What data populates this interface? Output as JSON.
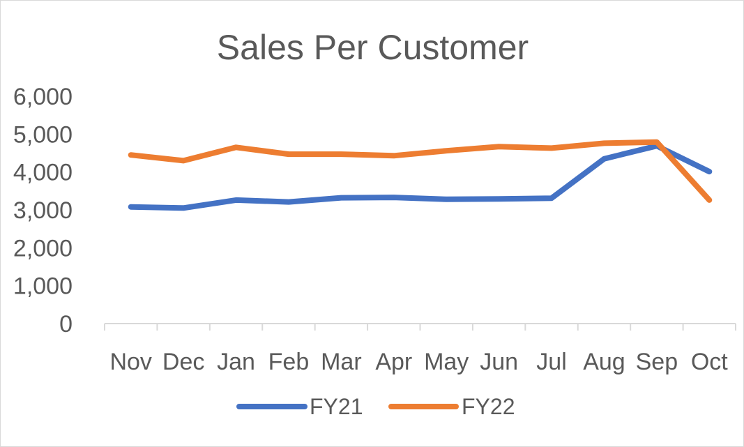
{
  "chart_data": {
    "type": "line",
    "title": "Sales Per Customer",
    "xlabel": "",
    "ylabel": "",
    "categories": [
      "Nov",
      "Dec",
      "Jan",
      "Feb",
      "Mar",
      "Apr",
      "May",
      "Jun",
      "Jul",
      "Aug",
      "Sep",
      "Oct"
    ],
    "yticks": [
      "0",
      "1,000",
      "2,000",
      "3,000",
      "4,000",
      "5,000",
      "6,000"
    ],
    "ylim": [
      0,
      6000
    ],
    "grid": false,
    "legend_position": "bottom",
    "series": [
      {
        "name": "FY21",
        "color": "#4472c4",
        "values": [
          3080,
          3050,
          3260,
          3210,
          3320,
          3330,
          3280,
          3290,
          3310,
          4350,
          4690,
          4010
        ]
      },
      {
        "name": "FY22",
        "color": "#ed7d31",
        "values": [
          4450,
          4300,
          4650,
          4470,
          4470,
          4430,
          4560,
          4670,
          4630,
          4760,
          4790,
          3260
        ]
      }
    ]
  }
}
